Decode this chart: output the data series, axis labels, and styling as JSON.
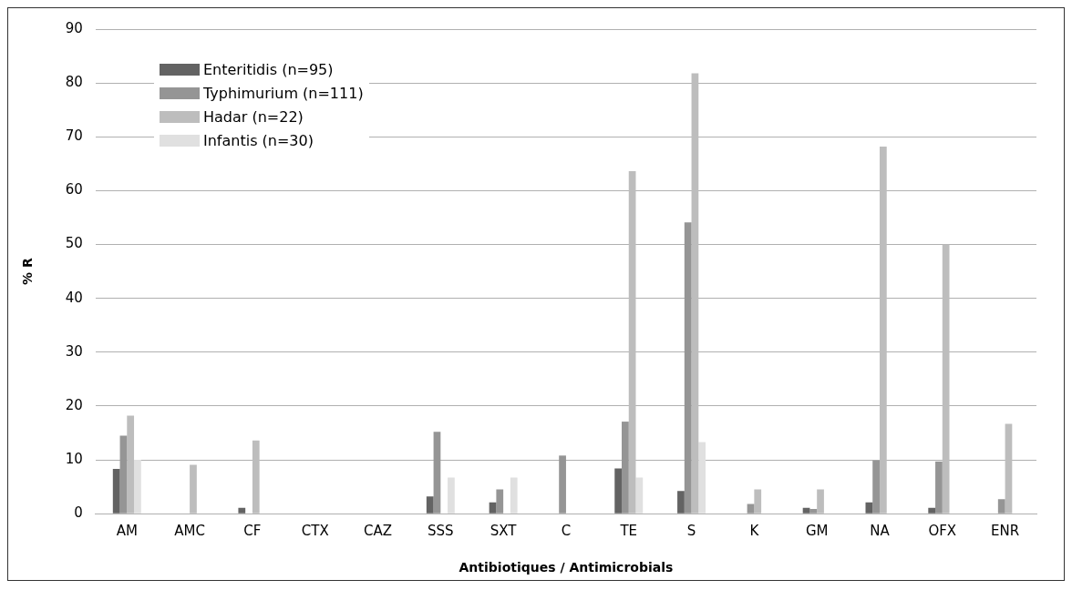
{
  "chart_data": {
    "type": "bar",
    "xlabel": "Antibiotiques / Antimicrobials",
    "ylabel": "% R",
    "categories": [
      "AM",
      "AMC",
      "CF",
      "CTX",
      "CAZ",
      "SSS",
      "SXT",
      "C",
      "TE",
      "S",
      "K",
      "GM",
      "NA",
      "OFX",
      "ENR"
    ],
    "series": [
      {
        "name": "Enteritidis (n=95)",
        "color": "#636363",
        "values": [
          8.3,
          0,
          1.1,
          0,
          0,
          3.2,
          2.1,
          0,
          8.4,
          4.2,
          0,
          1.1,
          2.1,
          1.1,
          0
        ]
      },
      {
        "name": "Typhimurium (n=111)",
        "color": "#959595",
        "values": [
          14.5,
          0,
          0,
          0,
          0,
          15.2,
          4.5,
          10.8,
          17.1,
          54.1,
          1.8,
          0.9,
          9.9,
          9.7,
          2.7
        ]
      },
      {
        "name": "Hadar (n=22)",
        "color": "#bdbdbd",
        "values": [
          18.2,
          9.1,
          13.6,
          0,
          0,
          0,
          0,
          0,
          63.6,
          81.8,
          4.5,
          4.5,
          68.2,
          50.0,
          16.7
        ]
      },
      {
        "name": "Infantis (n=30)",
        "color": "#e0e0e0",
        "values": [
          10.0,
          0,
          0,
          0,
          0,
          6.7,
          6.7,
          0,
          6.7,
          13.3,
          0,
          0,
          0,
          0,
          0
        ]
      }
    ],
    "ylim": [
      0,
      90
    ],
    "yticks": [
      0,
      10,
      20,
      30,
      40,
      50,
      60,
      70,
      80,
      90
    ],
    "grid": "y",
    "legend": "top left"
  }
}
